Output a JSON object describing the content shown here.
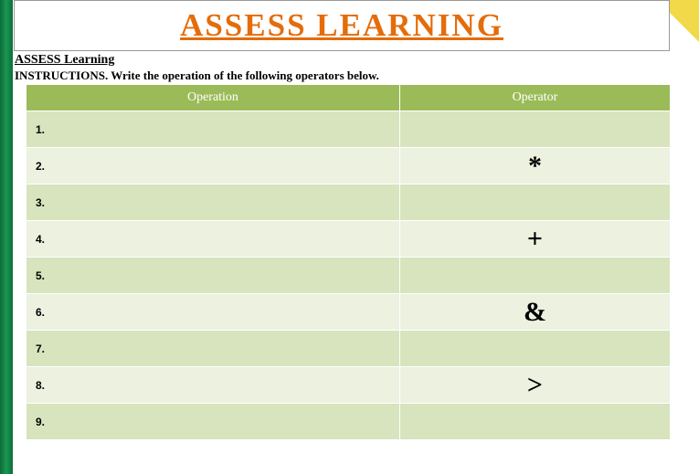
{
  "title": {
    "text": "ASSESS LEARNING",
    "color": "#e46c0a"
  },
  "subtitle": "ASSESS Learning",
  "instructions": "INSTRUCTIONS. Write the operation of the following operators below.",
  "table": {
    "header_bg": "#9bbb59",
    "header_text_color": "#ffffff",
    "row_colors": {
      "odd": "#d7e4bd",
      "even": "#ecf1e0"
    },
    "columns": [
      {
        "label": "Operation",
        "width": "58%"
      },
      {
        "label": "Operator",
        "width": "42%"
      }
    ],
    "rows": [
      {
        "num": "1.",
        "operation": "",
        "operator": ""
      },
      {
        "num": "2.",
        "operation": "",
        "operator": "*"
      },
      {
        "num": "3.",
        "operation": "",
        "operator": ""
      },
      {
        "num": "4.",
        "operation": "",
        "operator": "+"
      },
      {
        "num": "5.",
        "operation": "",
        "operator": ""
      },
      {
        "num": "6.",
        "operation": "",
        "operator": "&"
      },
      {
        "num": "7.",
        "operation": "",
        "operator": ""
      },
      {
        "num": "8.",
        "operation": "",
        "operator": ">"
      },
      {
        "num": "9.",
        "operation": "",
        "operator": ""
      }
    ]
  },
  "corner_accent_color": "#f2d94a"
}
